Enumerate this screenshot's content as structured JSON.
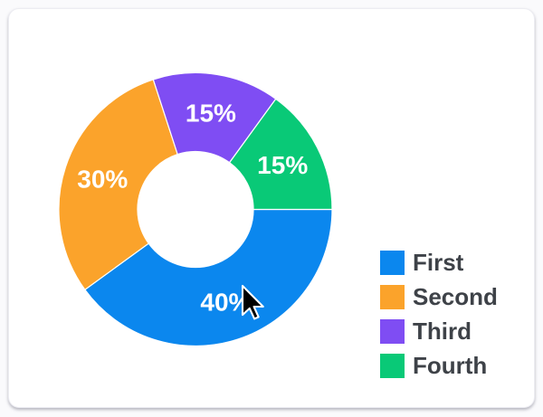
{
  "page": {
    "background_color": "#fafafc",
    "card_background_color": "#ffffff"
  },
  "chart_data": {
    "type": "pie",
    "subtype": "doughnut",
    "title": "",
    "categories": [
      "First",
      "Second",
      "Third",
      "Fourth"
    ],
    "values": [
      40,
      30,
      15,
      15
    ],
    "slice_labels": [
      "40%",
      "30%",
      "15%",
      "15%"
    ],
    "colors": [
      "#0B87EE",
      "#FBA32B",
      "#7F4DF3",
      "#09C977"
    ],
    "start_angle_deg": 90,
    "direction": "clockwise",
    "donut_hole_ratio": 0.42,
    "slice_label_color": "#ffffff",
    "legend_position": "right",
    "legend_text_color": "#3e4248"
  },
  "icons": {
    "mouse_cursor": "arrow-pointer"
  }
}
